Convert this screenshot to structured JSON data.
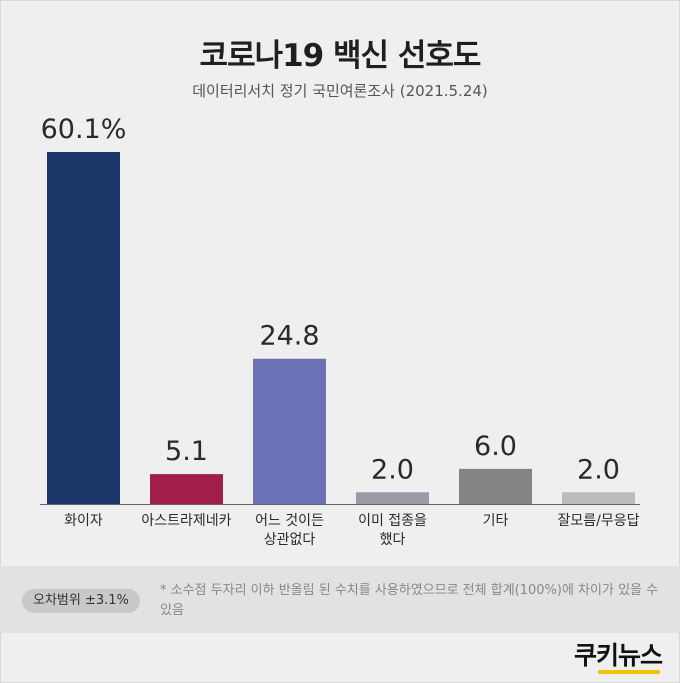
{
  "header": {
    "title": "코로나19 백신 선호도",
    "subtitle": "데이터리서치 정기 국민여론조사 (2021.5.24)"
  },
  "chart_data": {
    "type": "bar",
    "title": "코로나19 백신 선호도",
    "subtitle": "데이터리서치 정기 국민여론조사 (2021.5.24)",
    "categories": [
      [
        "화이자"
      ],
      [
        "아스트라제네카"
      ],
      [
        "어느 것이든",
        "상관없다"
      ],
      [
        "이미 접종을",
        "했다"
      ],
      [
        "기타"
      ],
      [
        "잘모름/무응답"
      ]
    ],
    "values": [
      60.1,
      5.1,
      24.8,
      2.0,
      6.0,
      2.0
    ],
    "value_labels": [
      "60.1%",
      "5.1",
      "24.8",
      "2.0",
      "6.0",
      "2.0"
    ],
    "colors": [
      "#1a3567",
      "#a21e4b",
      "#6c71b5",
      "#9a9aa6",
      "#858585",
      "#bcbcbc"
    ],
    "ylim": [
      0,
      60.1
    ],
    "grid": false,
    "legend": "none"
  },
  "note": {
    "margin_label": "오차범위 ±3.1%",
    "footnote": "* 소수점 두자리 이하 반올림 된 수치를 사용하였으므로 전체 합계(100%)에 차이가 있을 수 있음"
  },
  "logo": {
    "text": "쿠키뉴스",
    "accent_color": "#f2c400"
  }
}
